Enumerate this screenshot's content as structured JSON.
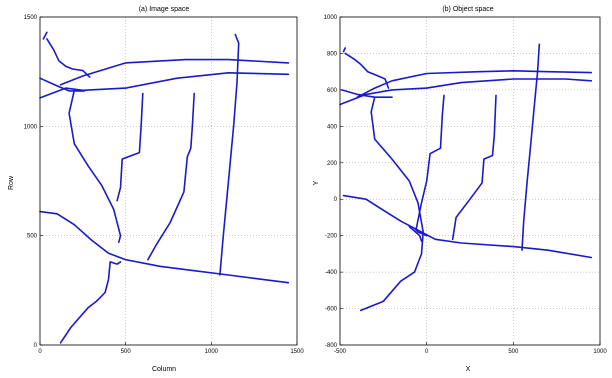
{
  "chart_data": [
    {
      "type": "line",
      "title": "(a) Image space",
      "xlabel": "Column",
      "ylabel": "Row",
      "xlim": [
        0,
        1500
      ],
      "ylim": [
        0,
        1500
      ],
      "xticks": [
        "0",
        "500",
        "1000",
        "1500"
      ],
      "yticks": [
        "0",
        "500",
        "1000",
        "1500"
      ],
      "grid": true,
      "series": [
        {
          "values": [
            [
              0,
              1130
            ],
            [
              150,
              1175
            ],
            [
              250,
              1165
            ],
            [
              500,
              1175
            ],
            [
              800,
              1220
            ],
            [
              1100,
              1245
            ],
            [
              1450,
              1238
            ]
          ]
        },
        {
          "values": [
            [
              0,
              1220
            ],
            [
              100,
              1185
            ],
            [
              170,
              1162
            ],
            [
              260,
              1162
            ]
          ]
        },
        {
          "values": [
            [
              120,
              1190
            ],
            [
              250,
              1230
            ],
            [
              500,
              1290
            ],
            [
              850,
              1305
            ],
            [
              1100,
              1305
            ],
            [
              1450,
              1290
            ]
          ]
        },
        {
          "values": [
            [
              20,
              1400
            ],
            [
              40,
              1430
            ]
          ]
        },
        {
          "values": [
            [
              40,
              1400
            ],
            [
              80,
              1350
            ],
            [
              110,
              1300
            ],
            [
              150,
              1275
            ],
            [
              190,
              1262
            ],
            [
              250,
              1255
            ],
            [
              290,
              1225
            ]
          ]
        },
        {
          "values": [
            [
              200,
              1165
            ],
            [
              170,
              1060
            ],
            [
              200,
              920
            ],
            [
              280,
              820
            ],
            [
              360,
              730
            ],
            [
              430,
              620
            ],
            [
              470,
              500
            ],
            [
              460,
              470
            ]
          ]
        },
        {
          "values": [
            [
              0,
              610
            ],
            [
              100,
              600
            ],
            [
              200,
              550
            ],
            [
              300,
              480
            ],
            [
              400,
              420
            ],
            [
              500,
              390
            ],
            [
              700,
              360
            ],
            [
              900,
              340
            ],
            [
              1100,
              320
            ],
            [
              1300,
              300
            ],
            [
              1450,
              285
            ]
          ]
        },
        {
          "values": [
            [
              120,
              10
            ],
            [
              180,
              80
            ],
            [
              280,
              170
            ],
            [
              330,
              200
            ],
            [
              380,
              240
            ],
            [
              400,
              300
            ],
            [
              410,
              380
            ],
            [
              450,
              370
            ],
            [
              470,
              380
            ]
          ]
        },
        {
          "values": [
            [
              450,
              660
            ],
            [
              470,
              720
            ],
            [
              480,
              850
            ],
            [
              580,
              880
            ],
            [
              590,
              1000
            ],
            [
              600,
              1150
            ]
          ]
        },
        {
          "values": [
            [
              630,
              390
            ],
            [
              680,
              460
            ],
            [
              760,
              560
            ],
            [
              840,
              700
            ],
            [
              860,
              860
            ],
            [
              880,
              900
            ],
            [
              890,
              1010
            ],
            [
              900,
              1150
            ]
          ]
        },
        {
          "values": [
            [
              1050,
              320
            ],
            [
              1070,
              500
            ],
            [
              1100,
              750
            ],
            [
              1130,
              1000
            ],
            [
              1150,
              1200
            ],
            [
              1160,
              1380
            ],
            [
              1140,
              1420
            ]
          ]
        }
      ]
    },
    {
      "type": "line",
      "title": "(b) Object space",
      "xlabel": "X",
      "ylabel": "Y",
      "xlim": [
        -500,
        1000
      ],
      "ylim": [
        -800,
        1000
      ],
      "xticks": [
        "-500",
        "0",
        "500",
        "1000"
      ],
      "yticks": [
        "-800",
        "-600",
        "-400",
        "-200",
        "0",
        "200",
        "400",
        "600",
        "800",
        "1000"
      ],
      "grid": true,
      "series": [
        {
          "values": [
            [
              -500,
              520
            ],
            [
              -350,
              575
            ],
            [
              -200,
              600
            ],
            [
              0,
              610
            ],
            [
              200,
              640
            ],
            [
              500,
              660
            ],
            [
              800,
              660
            ],
            [
              950,
              650
            ]
          ]
        },
        {
          "values": [
            [
              -490,
              600
            ],
            [
              -400,
              575
            ],
            [
              -300,
              560
            ],
            [
              -200,
              560
            ]
          ]
        },
        {
          "values": [
            [
              -400,
              560
            ],
            [
              -300,
              610
            ],
            [
              -200,
              650
            ],
            [
              0,
              690
            ],
            [
              300,
              700
            ],
            [
              500,
              705
            ],
            [
              700,
              700
            ],
            [
              950,
              695
            ]
          ]
        },
        {
          "values": [
            [
              -480,
              810
            ],
            [
              -470,
              830
            ]
          ]
        },
        {
          "values": [
            [
              -470,
              800
            ],
            [
              -420,
              770
            ],
            [
              -380,
              740
            ],
            [
              -340,
              700
            ],
            [
              -290,
              680
            ],
            [
              -240,
              660
            ],
            [
              -220,
              610
            ]
          ]
        },
        {
          "values": [
            [
              -300,
              560
            ],
            [
              -320,
              480
            ],
            [
              -300,
              330
            ],
            [
              -200,
              220
            ],
            [
              -100,
              100
            ],
            [
              -50,
              -20
            ],
            [
              -20,
              -180
            ],
            [
              -30,
              -300
            ],
            [
              -70,
              -400
            ],
            [
              -150,
              -450
            ],
            [
              -250,
              -560
            ],
            [
              -380,
              -610
            ]
          ]
        },
        {
          "values": [
            [
              -480,
              20
            ],
            [
              -350,
              0
            ],
            [
              -250,
              -60
            ],
            [
              -150,
              -120
            ],
            [
              -50,
              -170
            ],
            [
              50,
              -220
            ],
            [
              200,
              -240
            ],
            [
              500,
              -260
            ],
            [
              700,
              -280
            ],
            [
              950,
              -320
            ]
          ]
        },
        {
          "values": [
            [
              -100,
              -150
            ],
            [
              -40,
              -200
            ],
            [
              -30,
              -230
            ]
          ]
        },
        {
          "values": [
            [
              -70,
              -160
            ],
            [
              -50,
              -180
            ],
            [
              0,
              -200
            ]
          ]
        },
        {
          "values": [
            [
              -60,
              -160
            ],
            [
              -30,
              -20
            ],
            [
              0,
              100
            ],
            [
              20,
              250
            ],
            [
              80,
              280
            ],
            [
              90,
              460
            ],
            [
              100,
              570
            ]
          ]
        },
        {
          "values": [
            [
              150,
              -220
            ],
            [
              170,
              -100
            ],
            [
              250,
              0
            ],
            [
              320,
              90
            ],
            [
              330,
              220
            ],
            [
              380,
              240
            ],
            [
              390,
              350
            ],
            [
              400,
              570
            ]
          ]
        },
        {
          "values": [
            [
              550,
              -280
            ],
            [
              560,
              -120
            ],
            [
              580,
              100
            ],
            [
              600,
              300
            ],
            [
              620,
              500
            ],
            [
              640,
              700
            ],
            [
              650,
              850
            ]
          ]
        }
      ]
    }
  ]
}
